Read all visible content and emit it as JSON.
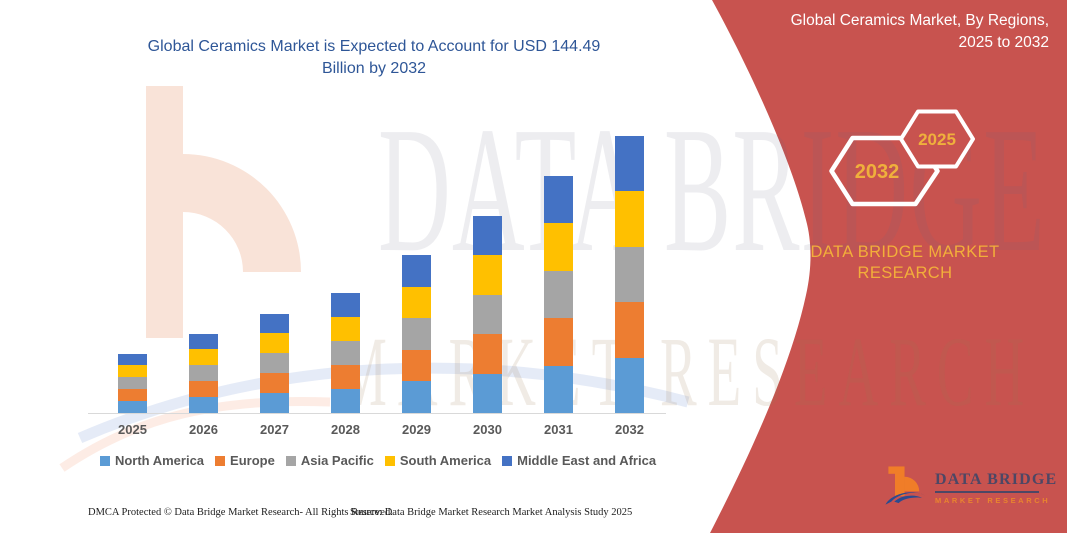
{
  "main": {
    "title_line1": "Global Ceramics Market is Expected to Account for USD 144.49",
    "title_line2": "Billion by 2032"
  },
  "chart_data": {
    "type": "bar",
    "stacked": true,
    "title": "Global Ceramics Market is Expected to Account for USD 144.49 Billion by 2032",
    "xlabel": "",
    "ylabel": "",
    "unit": "USD Billion",
    "ylim": [
      0,
      150
    ],
    "grid": false,
    "legend_position": "bottom",
    "categories": [
      "2025",
      "2026",
      "2027",
      "2028",
      "2029",
      "2030",
      "2031",
      "2032"
    ],
    "series": [
      {
        "name": "North America",
        "color": "#5B9BD5",
        "values": [
          6.2,
          8.3,
          10.4,
          12.5,
          16.5,
          20.6,
          24.8,
          28.9
        ]
      },
      {
        "name": "Europe",
        "color": "#ED7D31",
        "values": [
          6.2,
          8.3,
          10.4,
          12.5,
          16.5,
          20.6,
          24.8,
          28.9
        ]
      },
      {
        "name": "Asia Pacific",
        "color": "#A5A5A5",
        "values": [
          6.2,
          8.3,
          10.4,
          12.5,
          16.5,
          20.6,
          24.8,
          28.9
        ]
      },
      {
        "name": "South America",
        "color": "#FFC000",
        "values": [
          6.2,
          8.3,
          10.4,
          12.5,
          16.5,
          20.6,
          24.8,
          28.9
        ]
      },
      {
        "name": "Middle East and Africa",
        "color": "#4472C4",
        "values": [
          6.2,
          8.3,
          10.4,
          12.5,
          16.5,
          20.6,
          24.8,
          28.9
        ]
      }
    ],
    "totals_estimated": [
      31,
      41.5,
      52,
      62.5,
      82.5,
      103,
      124,
      144.49
    ]
  },
  "side_panel": {
    "heading_line1": "Global Ceramics Market, By Regions,",
    "heading_line2": "2025 to 2032",
    "hexagons": [
      {
        "label": "2032"
      },
      {
        "label": "2025"
      }
    ],
    "brand_line1": "DATA BRIDGE MARKET",
    "brand_line2": "RESEARCH",
    "colors": {
      "background": "#C8534F",
      "accent_gold": "#EFB03C"
    }
  },
  "logo": {
    "name": "DATA BRIDGE",
    "subtitle": "MARKET RESEARCH"
  },
  "watermark": {
    "line1": "DATA BRIDGE",
    "line2": "MARKET RESEARCH"
  },
  "footer": {
    "left": "DMCA Protected © Data Bridge Market Research-  All Rights Reserved.",
    "source": "Source: Data Bridge Market Research  Market Analysis Study 2025"
  }
}
